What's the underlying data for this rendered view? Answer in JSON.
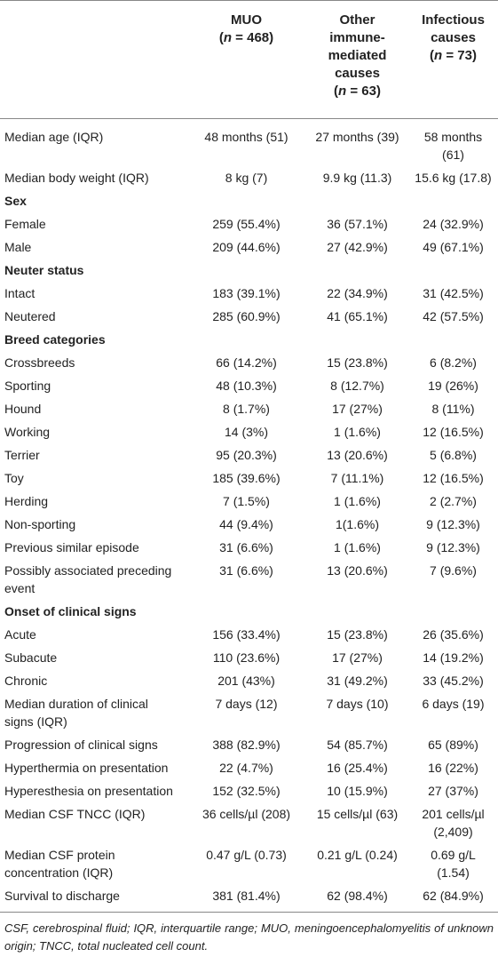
{
  "table": {
    "columns": [
      {
        "name": "MUO",
        "n_open": "(",
        "n_var": "n",
        "n_rest": " = 468)"
      },
      {
        "name": "Other immune-mediated causes",
        "n_open": "(",
        "n_var": "n",
        "n_rest": " = 63)"
      },
      {
        "name": "Infectious causes",
        "n_open": "(",
        "n_var": "n",
        "n_rest": " = 73)"
      }
    ],
    "rows": [
      {
        "label": "Median age (IQR)",
        "cells": [
          "48 months (51)",
          "27 months (39)",
          "58 months (61)"
        ]
      },
      {
        "label": "Median body weight (IQR)",
        "cells": [
          "8 kg (7)",
          "9.9 kg (11.3)",
          "15.6 kg (17.8)"
        ]
      },
      {
        "heading": "Sex"
      },
      {
        "label": "Female",
        "cells": [
          "259 (55.4%)",
          "36 (57.1%)",
          "24 (32.9%)"
        ]
      },
      {
        "label": "Male",
        "cells": [
          "209 (44.6%)",
          "27 (42.9%)",
          "49 (67.1%)"
        ]
      },
      {
        "heading": "Neuter status"
      },
      {
        "label": "Intact",
        "cells": [
          "183 (39.1%)",
          "22 (34.9%)",
          "31 (42.5%)"
        ]
      },
      {
        "label": "Neutered",
        "cells": [
          "285 (60.9%)",
          "41 (65.1%)",
          "42 (57.5%)"
        ]
      },
      {
        "heading": "Breed categories"
      },
      {
        "label": "Crossbreeds",
        "cells": [
          "66 (14.2%)",
          "15 (23.8%)",
          "6 (8.2%)"
        ]
      },
      {
        "label": "Sporting",
        "cells": [
          "48 (10.3%)",
          "8 (12.7%)",
          "19 (26%)"
        ]
      },
      {
        "label": "Hound",
        "cells": [
          "8 (1.7%)",
          "17 (27%)",
          "8 (11%)"
        ]
      },
      {
        "label": "Working",
        "cells": [
          "14 (3%)",
          "1 (1.6%)",
          "12 (16.5%)"
        ]
      },
      {
        "label": "Terrier",
        "cells": [
          "95 (20.3%)",
          "13 (20.6%)",
          "5 (6.8%)"
        ]
      },
      {
        "label": "Toy",
        "cells": [
          "185 (39.6%)",
          "7 (11.1%)",
          "12 (16.5%)"
        ]
      },
      {
        "label": "Herding",
        "cells": [
          "7 (1.5%)",
          "1 (1.6%)",
          "2 (2.7%)"
        ]
      },
      {
        "label": "Non-sporting",
        "cells": [
          "44 (9.4%)",
          "1(1.6%)",
          "9 (12.3%)"
        ]
      },
      {
        "label": "Previous similar episode",
        "cells": [
          "31 (6.6%)",
          "1 (1.6%)",
          "9 (12.3%)"
        ]
      },
      {
        "label": "Possibly associated preceding event",
        "cells": [
          "31 (6.6%)",
          "13 (20.6%)",
          "7 (9.6%)"
        ]
      },
      {
        "heading": "Onset of clinical signs"
      },
      {
        "label": "Acute",
        "cells": [
          "156 (33.4%)",
          "15 (23.8%)",
          "26 (35.6%)"
        ]
      },
      {
        "label": "Subacute",
        "cells": [
          "110 (23.6%)",
          "17 (27%)",
          "14 (19.2%)"
        ]
      },
      {
        "label": "Chronic",
        "cells": [
          "201 (43%)",
          "31 (49.2%)",
          "33 (45.2%)"
        ]
      },
      {
        "label": "Median duration of clinical signs (IQR)",
        "cells": [
          "7 days (12)",
          "7 days (10)",
          "6 days (19)"
        ]
      },
      {
        "label": "Progression of clinical signs",
        "cells": [
          "388 (82.9%)",
          "54 (85.7%)",
          "65 (89%)"
        ]
      },
      {
        "label": "Hyperthermia on presentation",
        "cells": [
          "22 (4.7%)",
          "16 (25.4%)",
          "16 (22%)"
        ]
      },
      {
        "label": "Hyperesthesia on presentation",
        "cells": [
          "152 (32.5%)",
          "10 (15.9%)",
          "27 (37%)"
        ]
      },
      {
        "label": "Median CSF TNCC (IQR)",
        "cells": [
          "36 cells/µl (208)",
          "15 cells/µl (63)",
          "201 cells/µl (2,409)"
        ]
      },
      {
        "label": "Median CSF protein concentration (IQR)",
        "cells": [
          "0.47 g/L (0.73)",
          "0.21 g/L (0.24)",
          "0.69 g/L (1.54)"
        ]
      },
      {
        "label": "Survival to discharge",
        "cells": [
          "381 (81.4%)",
          "62 (98.4%)",
          "62 (84.9%)"
        ]
      }
    ]
  },
  "footnote": "CSF, cerebrospinal fluid; IQR, interquartile range; MUO, meningoencephalomyelitis of unknown origin; TNCC, total nucleated cell count."
}
